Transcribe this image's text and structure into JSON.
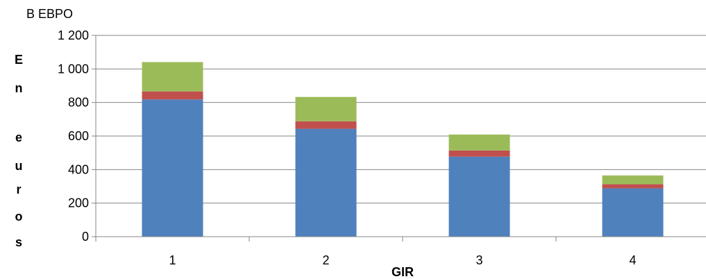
{
  "chart_data": {
    "type": "bar",
    "stacked": true,
    "title": "B EBPO",
    "xlabel": "GIR",
    "ylabel": "En euros",
    "categories": [
      "1",
      "2",
      "3",
      "4"
    ],
    "ylim": [
      0,
      1200
    ],
    "yticks": [
      0,
      200,
      400,
      600,
      800,
      1000,
      1200
    ],
    "ytick_labels": [
      "0",
      "200",
      "400",
      "600",
      "800",
      "1 000",
      "1 200"
    ],
    "grid": true,
    "legend": "none",
    "series": [
      {
        "values": [
          818,
          643,
          477,
          288
        ],
        "color": "#4F81BD"
      },
      {
        "values": [
          48,
          45,
          37,
          25
        ],
        "color": "#C0504D"
      },
      {
        "values": [
          175,
          145,
          95,
          52
        ],
        "color": "#9BBB59"
      }
    ]
  }
}
